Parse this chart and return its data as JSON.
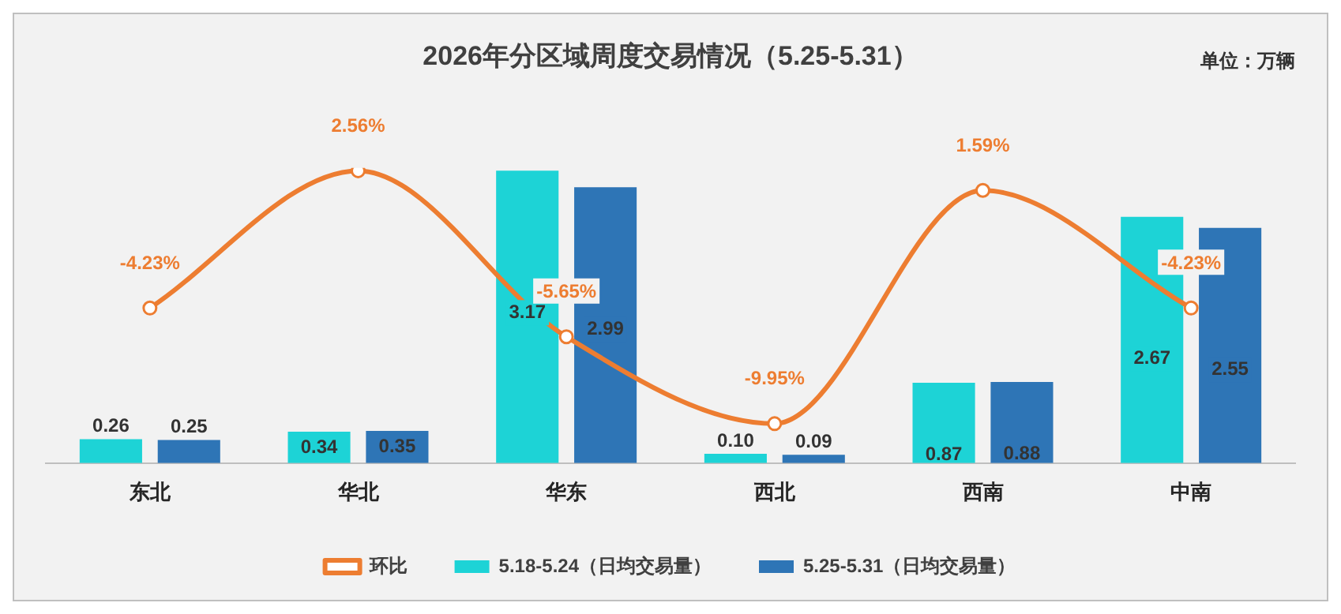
{
  "chart_data": {
    "type": "bar",
    "title": "2026年分区域周度交易情况（5.25-5.31）",
    "annotations": [
      "单位：万辆"
    ],
    "categories": [
      "东北",
      "华北",
      "华东",
      "西北",
      "西南",
      "中南"
    ],
    "series": [
      {
        "name": "5.18-5.24（日均交易量）",
        "color": "#1dd3d6",
        "values": [
          0.26,
          0.34,
          3.17,
          0.1,
          0.87,
          2.67
        ],
        "value_labels": [
          "0.26",
          "0.34",
          "3.17",
          "0.10",
          "0.87",
          "2.67"
        ]
      },
      {
        "name": "5.25-5.31（日均交易量）",
        "color": "#2e75b6",
        "values": [
          0.25,
          0.35,
          2.99,
          0.09,
          0.88,
          2.55
        ],
        "value_labels": [
          "0.25",
          "0.35",
          "2.99",
          "0.09",
          "0.88",
          "2.55"
        ]
      },
      {
        "name": "环比",
        "type": "line",
        "axis": "y2",
        "color": "#ed7d31",
        "values": [
          -4.23,
          2.56,
          -5.65,
          -9.95,
          1.59,
          -4.23
        ],
        "value_labels": [
          "-4.23%",
          "2.56%",
          "-5.65%",
          "-9.95%",
          "1.59%",
          "-4.23%"
        ]
      }
    ],
    "ylim": [
      0,
      3.2
    ],
    "y2lim": [
      -11.9,
      2.7
    ],
    "tick_labels": "x",
    "grid": false,
    "legend": "bottom",
    "marker": "circle",
    "line_style": "solid"
  }
}
